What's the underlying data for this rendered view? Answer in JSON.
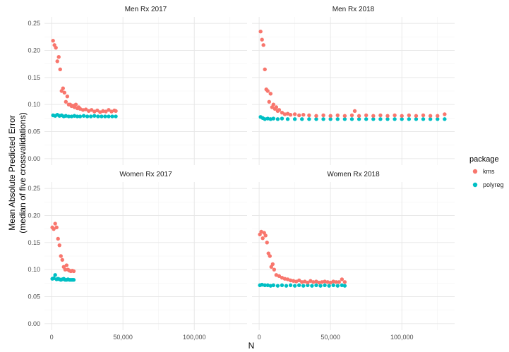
{
  "chart_data": {
    "type": "scatter",
    "xlabel": "N",
    "ylabel": "Mean Absolute Predicted Error",
    "ylabel_sub": "(median of five crossvalidations)",
    "xlim": [
      -5000,
      137000
    ],
    "ylim": [
      -0.012,
      0.262
    ],
    "xticks": [
      0,
      50000,
      100000
    ],
    "xtick_labels": [
      "0",
      "50,000",
      "100,000"
    ],
    "yticks": [
      0,
      0.05,
      0.1,
      0.15,
      0.2,
      0.25
    ],
    "ytick_labels": [
      "0.00",
      "0.05",
      "0.10",
      "0.15",
      "0.20",
      "0.25"
    ],
    "grid": true,
    "legend": {
      "title": "package",
      "placement": "right",
      "entries": [
        {
          "label": "kms",
          "color": "#F8766D"
        },
        {
          "label": "polyreg",
          "color": "#00BFC4"
        }
      ]
    },
    "panels": [
      {
        "title": "Men Rx 2017",
        "series": [
          {
            "name": "kms",
            "color": "#F8766D",
            "x": [
              1000,
              2000,
              3000,
              4000,
              5000,
              6000,
              7000,
              8000,
              9000,
              10000,
              11000,
              12000,
              13000,
              14000,
              15000,
              16000,
              17000,
              18000,
              19000,
              20000,
              22000,
              24000,
              26000,
              28000,
              30000,
              32000,
              34000,
              36000,
              38000,
              40000,
              42000,
              44000,
              45000
            ],
            "y": [
              0.218,
              0.21,
              0.205,
              0.18,
              0.188,
              0.165,
              0.125,
              0.13,
              0.122,
              0.105,
              0.115,
              0.1,
              0.1,
              0.097,
              0.098,
              0.095,
              0.1,
              0.093,
              0.095,
              0.092,
              0.09,
              0.091,
              0.088,
              0.09,
              0.087,
              0.089,
              0.086,
              0.088,
              0.087,
              0.09,
              0.087,
              0.089,
              0.088
            ]
          },
          {
            "name": "polyreg",
            "color": "#00BFC4",
            "x": [
              1000,
              2500,
              4000,
              5500,
              7000,
              8500,
              10000,
              12000,
              14000,
              16000,
              18000,
              20000,
              22500,
              25000,
              27500,
              30000,
              32500,
              35000,
              37500,
              40000,
              42500,
              45000
            ],
            "y": [
              0.08,
              0.079,
              0.081,
              0.079,
              0.08,
              0.078,
              0.079,
              0.078,
              0.078,
              0.079,
              0.078,
              0.078,
              0.079,
              0.078,
              0.078,
              0.079,
              0.078,
              0.078,
              0.078,
              0.078,
              0.078,
              0.078
            ]
          }
        ]
      },
      {
        "title": "Men Rx 2018",
        "series": [
          {
            "name": "kms",
            "color": "#F8766D",
            "x": [
              1000,
              2000,
              3000,
              4000,
              5000,
              6000,
              7000,
              8000,
              9000,
              10000,
              11000,
              12000,
              13000,
              14000,
              16000,
              18000,
              20000,
              22000,
              25000,
              28000,
              31000,
              35000,
              40000,
              45000,
              50000,
              55000,
              60000,
              65000,
              67000,
              70000,
              75000,
              80000,
              85000,
              90000,
              95000,
              100000,
              105000,
              110000,
              115000,
              120000,
              125000,
              130000
            ],
            "y": [
              0.235,
              0.22,
              0.21,
              0.165,
              0.128,
              0.125,
              0.105,
              0.12,
              0.095,
              0.1,
              0.092,
              0.095,
              0.088,
              0.09,
              0.085,
              0.082,
              0.083,
              0.081,
              0.082,
              0.08,
              0.081,
              0.08,
              0.079,
              0.08,
              0.079,
              0.08,
              0.079,
              0.08,
              0.088,
              0.079,
              0.08,
              0.079,
              0.08,
              0.079,
              0.08,
              0.079,
              0.08,
              0.079,
              0.08,
              0.079,
              0.079,
              0.082
            ]
          },
          {
            "name": "polyreg",
            "color": "#00BFC4",
            "x": [
              1000,
              2500,
              4000,
              6000,
              8000,
              10000,
              13000,
              16000,
              20000,
              25000,
              30000,
              35000,
              40000,
              45000,
              50000,
              55000,
              60000,
              65000,
              70000,
              75000,
              80000,
              85000,
              90000,
              95000,
              100000,
              105000,
              110000,
              115000,
              120000,
              125000,
              130000
            ],
            "y": [
              0.077,
              0.075,
              0.073,
              0.074,
              0.073,
              0.074,
              0.073,
              0.074,
              0.073,
              0.073,
              0.073,
              0.073,
              0.073,
              0.073,
              0.073,
              0.073,
              0.073,
              0.073,
              0.073,
              0.073,
              0.073,
              0.073,
              0.073,
              0.073,
              0.073,
              0.073,
              0.073,
              0.073,
              0.073,
              0.073,
              0.073
            ]
          }
        ]
      },
      {
        "title": "Women Rx 2017",
        "series": [
          {
            "name": "kms",
            "color": "#F8766D",
            "x": [
              500,
              1500,
              2500,
              3500,
              4500,
              5500,
              6500,
              7500,
              8500,
              9500,
              10500,
              11500,
              12500,
              13500,
              14500,
              15500
            ],
            "y": [
              0.178,
              0.175,
              0.185,
              0.178,
              0.157,
              0.145,
              0.125,
              0.118,
              0.105,
              0.1,
              0.108,
              0.1,
              0.098,
              0.097,
              0.098,
              0.097
            ]
          },
          {
            "name": "polyreg",
            "color": "#00BFC4",
            "x": [
              500,
              1500,
              2500,
              3500,
              4500,
              5500,
              6500,
              7500,
              8500,
              9500,
              10500,
              11500,
              12500,
              13500,
              14500,
              15500
            ],
            "y": [
              0.083,
              0.084,
              0.09,
              0.082,
              0.083,
              0.082,
              0.081,
              0.082,
              0.083,
              0.081,
              0.081,
              0.082,
              0.081,
              0.081,
              0.081,
              0.081
            ]
          }
        ]
      },
      {
        "title": "Women Rx 2018",
        "series": [
          {
            "name": "kms",
            "color": "#F8766D",
            "x": [
              500,
              1500,
              2500,
              3500,
              4500,
              5500,
              6500,
              7500,
              8500,
              9500,
              10500,
              12000,
              14000,
              16000,
              18000,
              20000,
              22000,
              24000,
              26000,
              28000,
              30000,
              32000,
              34000,
              36000,
              38000,
              40000,
              42000,
              44000,
              46000,
              48000,
              50000,
              52000,
              54000,
              56000,
              58000,
              60000
            ],
            "y": [
              0.165,
              0.17,
              0.158,
              0.168,
              0.163,
              0.15,
              0.13,
              0.125,
              0.105,
              0.11,
              0.1,
              0.09,
              0.088,
              0.085,
              0.083,
              0.082,
              0.08,
              0.079,
              0.078,
              0.08,
              0.077,
              0.078,
              0.076,
              0.079,
              0.077,
              0.078,
              0.076,
              0.077,
              0.078,
              0.077,
              0.076,
              0.078,
              0.077,
              0.077,
              0.082,
              0.077
            ]
          },
          {
            "name": "polyreg",
            "color": "#00BFC4",
            "x": [
              500,
              2000,
              4000,
              6000,
              8000,
              10000,
              13000,
              16000,
              19000,
              22000,
              25000,
              28000,
              31000,
              34000,
              37000,
              40000,
              43000,
              46000,
              49000,
              52000,
              55000,
              58000,
              60000
            ],
            "y": [
              0.071,
              0.072,
              0.071,
              0.071,
              0.07,
              0.071,
              0.07,
              0.071,
              0.07,
              0.071,
              0.07,
              0.071,
              0.07,
              0.071,
              0.07,
              0.071,
              0.07,
              0.071,
              0.07,
              0.071,
              0.07,
              0.071,
              0.07
            ]
          }
        ]
      }
    ]
  }
}
